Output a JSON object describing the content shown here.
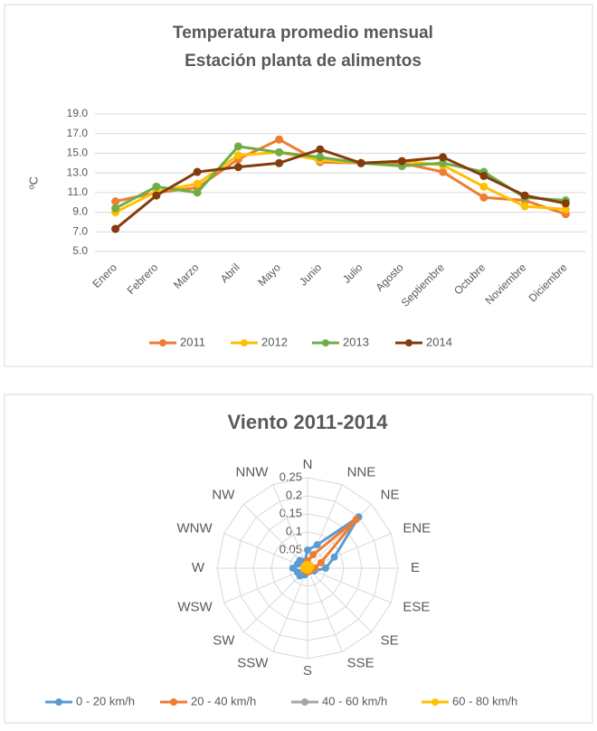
{
  "chart_data": [
    {
      "type": "line",
      "title": "Temperatura promedio mensual",
      "subtitle": "Estación planta de alimentos",
      "y_label": "ºC",
      "categories": [
        "Enero",
        "Febrero",
        "Marzo",
        "Abril",
        "Mayo",
        "Junio",
        "Julio",
        "Agosto",
        "Septiembre",
        "Octubre",
        "Noviembre",
        "Diciembre"
      ],
      "series": [
        {
          "name": "2011",
          "color": "#ed7d31",
          "values": [
            10.1,
            11.0,
            11.5,
            14.4,
            16.4,
            14.1,
            14.0,
            14.0,
            13.1,
            10.5,
            10.2,
            8.8
          ]
        },
        {
          "name": "2012",
          "color": "#ffc000",
          "values": [
            9.0,
            11.1,
            11.9,
            14.8,
            15.1,
            14.3,
            14.0,
            14.2,
            13.8,
            11.6,
            9.6,
            9.3
          ]
        },
        {
          "name": "2013",
          "color": "#70ad47",
          "values": [
            9.4,
            11.6,
            11.0,
            15.7,
            15.1,
            14.6,
            14.0,
            13.7,
            14.0,
            13.1,
            10.5,
            10.2
          ]
        },
        {
          "name": "2014",
          "color": "#843c0c",
          "values": [
            7.3,
            10.7,
            13.1,
            13.6,
            14.0,
            15.4,
            14.0,
            14.2,
            14.6,
            12.7,
            10.7,
            9.9
          ]
        }
      ],
      "ylim": [
        5,
        19
      ],
      "yticks": [
        {
          "value": 5,
          "label": "5.0"
        },
        {
          "value": 7,
          "label": "7.0"
        },
        {
          "value": 9,
          "label": "9.0"
        },
        {
          "value": 11,
          "label": "11.0"
        },
        {
          "value": 13,
          "label": "13.0"
        },
        {
          "value": 15,
          "label": "15.0"
        },
        {
          "value": 17,
          "label": "17.0"
        },
        {
          "value": 19,
          "label": "19.0"
        }
      ],
      "grid": true,
      "legend": "bottom"
    },
    {
      "type": "radar",
      "title": "Viento 2011-2014",
      "categories": [
        "N",
        "NNE",
        "NE",
        "ENE",
        "E",
        "ESE",
        "SE",
        "SSE",
        "S",
        "SSW",
        "SW",
        "WSW",
        "W",
        "WNW",
        "NW",
        "NNW"
      ],
      "series": [
        {
          "name": "0 - 20  km/h",
          "color": "#5b9bd5",
          "values": [
            0.05,
            0.07,
            0.2,
            0.08,
            0.05,
            0.02,
            0.01,
            0.01,
            0.01,
            0.02,
            0.03,
            0.03,
            0.04,
            0.03,
            0.03,
            0.02
          ]
        },
        {
          "name": "20 - 40  km/h",
          "color": "#ed7d31",
          "values": [
            0.02,
            0.04,
            0.19,
            0.04,
            0.02,
            0.01,
            0.01,
            0.01,
            0.01,
            0.01,
            0.01,
            0.01,
            0.01,
            0.01,
            0.01,
            0.01
          ]
        },
        {
          "name": "40 - 60  km/h",
          "color": "#a5a5a5",
          "values": [
            0.005,
            0.01,
            0.01,
            0.005,
            0.005,
            0.005,
            0.005,
            0.005,
            0.005,
            0.005,
            0.005,
            0.005,
            0.005,
            0.005,
            0.005,
            0.005
          ]
        },
        {
          "name": "60 - 80  km/h",
          "color": "#ffc000",
          "values": [
            0.01,
            0.01,
            0.01,
            0.01,
            0.005,
            0.005,
            0.005,
            0.005,
            0.005,
            0.005,
            0.005,
            0.005,
            0.01,
            0.01,
            0.01,
            0.01
          ]
        }
      ],
      "rlim": [
        0,
        0.25
      ],
      "rticks": [
        0,
        0.05,
        0.1,
        0.15,
        0.2,
        0.25
      ],
      "grid": true,
      "legend": "bottom"
    }
  ]
}
